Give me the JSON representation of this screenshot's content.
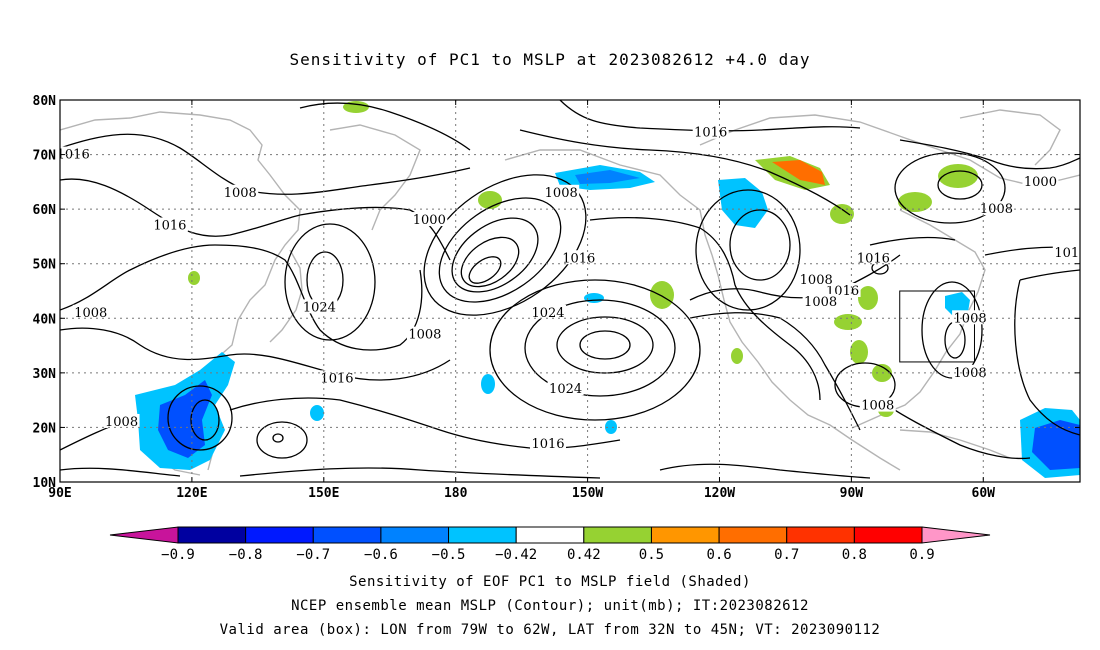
{
  "title": "Sensitivity of PC1 to MSLP at 2023082612 +4.0 day",
  "map": {
    "lat_labels": [
      "80N",
      "70N",
      "60N",
      "50N",
      "40N",
      "30N",
      "20N",
      "10N"
    ],
    "lon_labels": [
      "90E",
      "120E",
      "150E",
      "180",
      "150W",
      "120W",
      "90W",
      "60W"
    ],
    "lon_range": [
      90,
      322
    ],
    "lat_range": [
      10,
      80
    ],
    "contour_interval_mb": 4,
    "contour_labels": [
      {
        "text": "1016",
        "lon": 93,
        "lat": 70
      },
      {
        "text": "1008",
        "lon": 131,
        "lat": 63
      },
      {
        "text": "1016",
        "lon": 115,
        "lat": 57
      },
      {
        "text": "1024",
        "lon": 149,
        "lat": 42
      },
      {
        "text": "1008",
        "lon": 97,
        "lat": 41
      },
      {
        "text": "1016",
        "lon": 153,
        "lat": 29
      },
      {
        "text": "1008",
        "lon": 104,
        "lat": 21
      },
      {
        "text": "1000",
        "lon": 174,
        "lat": 58
      },
      {
        "text": "1008",
        "lon": 173,
        "lat": 37
      },
      {
        "text": "1008",
        "lon": 204,
        "lat": 63
      },
      {
        "text": "1016",
        "lon": 238,
        "lat": 74
      },
      {
        "text": "1016",
        "lon": 208,
        "lat": 51
      },
      {
        "text": "1024",
        "lon": 201,
        "lat": 41
      },
      {
        "text": "1024",
        "lon": 205,
        "lat": 27
      },
      {
        "text": "1016",
        "lon": 201,
        "lat": 17
      },
      {
        "text": "1016",
        "lon": 268,
        "lat": 45
      },
      {
        "text": "1008",
        "lon": 262,
        "lat": 47
      },
      {
        "text": "1008",
        "lon": 263,
        "lat": 43
      },
      {
        "text": "1016",
        "lon": 275,
        "lat": 51
      },
      {
        "text": "1008",
        "lon": 276,
        "lat": 24
      },
      {
        "text": "1008",
        "lon": 303,
        "lat": 60
      },
      {
        "text": "1000",
        "lon": 313,
        "lat": 65
      },
      {
        "text": "1008",
        "lon": 297,
        "lat": 40
      },
      {
        "text": "1008",
        "lon": 297,
        "lat": 30
      },
      {
        "text": "101",
        "lon": 319,
        "lat": 52
      }
    ],
    "valid_box": {
      "lon_w": -79,
      "lon_e": -62,
      "lat_s": 32,
      "lat_n": 45
    }
  },
  "colorbar": {
    "labels": [
      "−0.9",
      "−0.8",
      "−0.7",
      "−0.6",
      "−0.5",
      "−0.42",
      "0.42",
      "0.5",
      "0.6",
      "0.7",
      "0.8",
      "0.9"
    ],
    "colors": [
      "#0000a0",
      "#0019ff",
      "#0050ff",
      "#0082ff",
      "#00c3ff",
      "#ffffff",
      "#96d232",
      "#ff9600",
      "#ff6e00",
      "#ff3200",
      "#ff0000"
    ],
    "low_end_color": "#c8149b",
    "high_end_color": "#ff96c8"
  },
  "captions": [
    "Sensitivity of EOF PC1 to MSLP field (Shaded)",
    "NCEP ensemble mean MSLP (Contour); unit(mb); IT:2023082612",
    "Valid area (box): LON from 79W to 62W, LAT from 32N to 45N; VT: 2023090112"
  ]
}
